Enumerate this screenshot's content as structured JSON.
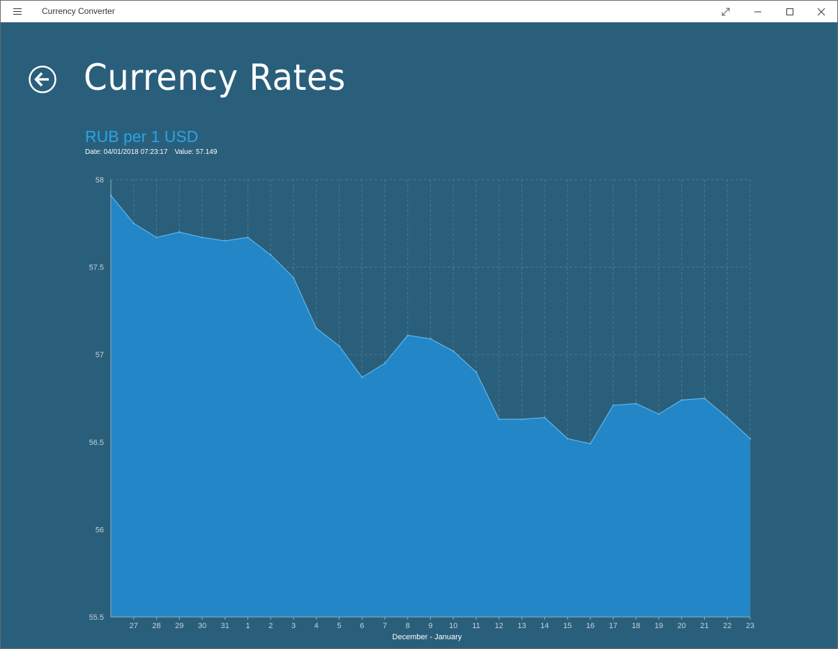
{
  "titlebar": {
    "app_title": "Currency Converter",
    "menu_icon": "hamburger-icon",
    "buttons": [
      "expand-icon",
      "minimize-icon",
      "maximize-icon",
      "close-icon"
    ]
  },
  "header": {
    "title": "Currency Rates",
    "back_icon": "back-arrow-icon"
  },
  "chart_info": {
    "title": "RUB per 1 USD",
    "date_label": "Date: 04/01/2018 07:23:17",
    "value_label": "Value: 57.149"
  },
  "colors": {
    "background": "#2a5f7b",
    "area_fill": "#2286c7",
    "line": "#5fb7ea",
    "title_accent": "#2ba2e8"
  },
  "chart_data": {
    "type": "area",
    "title": "RUB per 1 USD",
    "xlabel": "December - January",
    "ylabel": "",
    "ylim": [
      55.5,
      58
    ],
    "y_ticks": [
      "58",
      "57.5",
      "57",
      "56.5",
      "56",
      "55.5"
    ],
    "x_tick_labels": [
      "27",
      "28",
      "29",
      "30",
      "31",
      "1",
      "2",
      "3",
      "4",
      "5",
      "6",
      "7",
      "8",
      "9",
      "10",
      "11",
      "12",
      "13",
      "14",
      "15",
      "16",
      "17",
      "18",
      "19",
      "20",
      "21",
      "22",
      "23"
    ],
    "x": [
      "26",
      "27",
      "28",
      "29",
      "30",
      "31",
      "1",
      "2",
      "3",
      "4",
      "5",
      "6",
      "7",
      "8",
      "9",
      "10",
      "11",
      "12",
      "13",
      "14",
      "15",
      "16",
      "17",
      "18",
      "19",
      "20",
      "21",
      "22",
      "23"
    ],
    "series": [
      {
        "values": [
          57.91,
          57.75,
          57.67,
          57.7,
          57.67,
          57.65,
          57.67,
          57.57,
          57.44,
          57.15,
          57.05,
          56.87,
          56.95,
          57.11,
          57.09,
          57.02,
          56.9,
          56.63,
          56.63,
          56.64,
          56.52,
          56.49,
          56.71,
          56.72,
          56.66,
          56.74,
          56.75,
          56.64,
          56.52
        ]
      }
    ],
    "grid": true,
    "legend": "none"
  }
}
